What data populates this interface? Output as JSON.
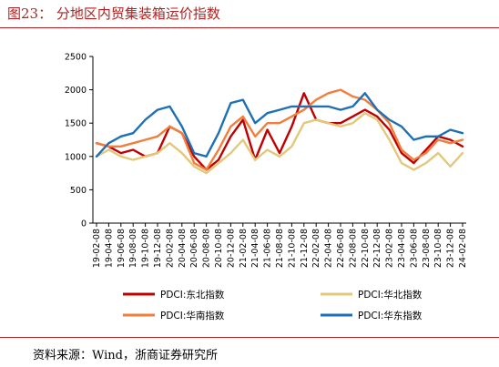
{
  "header": {
    "title": "图23：   分地区内贸集装箱运价指数"
  },
  "footer": {
    "source": "资料来源：Wind，浙商证券研究所"
  },
  "colors": {
    "accent": "#b22222"
  },
  "chart_data": {
    "type": "line",
    "title": "图23：   分地区内贸集装箱运价指数",
    "xlabel": "",
    "ylabel": "",
    "ylim": [
      0,
      2500
    ],
    "yticks": [
      0,
      500,
      1000,
      1500,
      2000,
      2500
    ],
    "grid": false,
    "legend_position": "bottom",
    "x": [
      "19-02-08",
      "19-04-08",
      "19-06-08",
      "19-08-08",
      "19-10-08",
      "19-12-08",
      "20-02-08",
      "20-04-08",
      "20-06-08",
      "20-08-08",
      "20-10-08",
      "20-12-08",
      "21-02-08",
      "21-04-08",
      "21-06-08",
      "21-08-08",
      "21-10-08",
      "21-12-08",
      "22-02-08",
      "22-04-08",
      "22-06-08",
      "22-08-08",
      "22-10-08",
      "22-12-08",
      "23-02-08",
      "23-04-08",
      "23-06-08",
      "23-08-08",
      "23-10-08",
      "23-12-08",
      "24-02-08"
    ],
    "series": [
      {
        "name": "PDCI:东北指数",
        "color": "#c00000",
        "values": [
          1200,
          1150,
          1050,
          1100,
          1000,
          1050,
          1450,
          1350,
          1000,
          800,
          950,
          1300,
          1550,
          950,
          1400,
          1050,
          1450,
          1950,
          1550,
          1500,
          1500,
          1600,
          1700,
          1600,
          1400,
          1050,
          900,
          1100,
          1300,
          1250,
          1150
        ]
      },
      {
        "name": "PDCI:华北指数",
        "color": "#e3c87a",
        "values": [
          1000,
          1100,
          1000,
          950,
          1000,
          1050,
          1200,
          1050,
          850,
          750,
          900,
          1050,
          1250,
          950,
          1100,
          1000,
          1150,
          1500,
          1550,
          1500,
          1450,
          1500,
          1650,
          1550,
          1250,
          900,
          800,
          900,
          1050,
          850,
          1050
        ]
      },
      {
        "name": "PDCI:华南指数",
        "color": "#f07f3c",
        "values": [
          1200,
          1150,
          1150,
          1200,
          1250,
          1300,
          1450,
          1350,
          900,
          800,
          1100,
          1450,
          1600,
          1300,
          1500,
          1500,
          1600,
          1700,
          1850,
          1950,
          2000,
          1900,
          1850,
          1700,
          1500,
          1100,
          950,
          1050,
          1250,
          1200,
          1250
        ]
      },
      {
        "name": "PDCI:华东指数",
        "color": "#1f6fb5",
        "values": [
          1000,
          1200,
          1300,
          1350,
          1550,
          1700,
          1750,
          1450,
          1050,
          1000,
          1350,
          1800,
          1850,
          1500,
          1650,
          1700,
          1750,
          1750,
          1750,
          1750,
          1700,
          1750,
          1950,
          1700,
          1550,
          1450,
          1250,
          1300,
          1300,
          1400,
          1350
        ]
      }
    ]
  }
}
